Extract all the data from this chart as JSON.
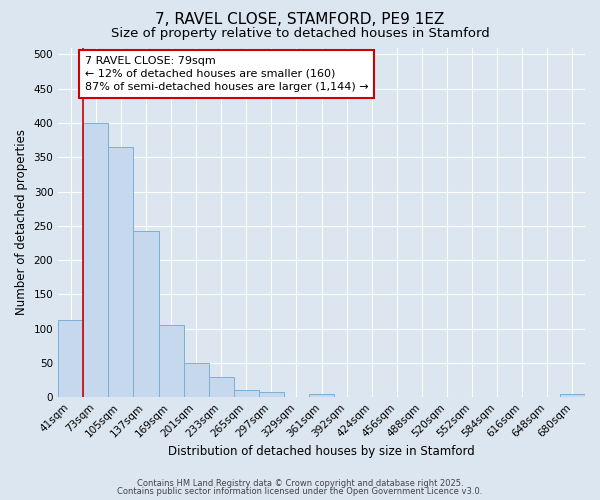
{
  "title": "7, RAVEL CLOSE, STAMFORD, PE9 1EZ",
  "subtitle": "Size of property relative to detached houses in Stamford",
  "xlabel": "Distribution of detached houses by size in Stamford",
  "ylabel": "Number of detached properties",
  "bar_labels": [
    "41sqm",
    "73sqm",
    "105sqm",
    "137sqm",
    "169sqm",
    "201sqm",
    "233sqm",
    "265sqm",
    "297sqm",
    "329sqm",
    "361sqm",
    "392sqm",
    "424sqm",
    "456sqm",
    "488sqm",
    "520sqm",
    "552sqm",
    "584sqm",
    "616sqm",
    "648sqm",
    "680sqm"
  ],
  "bar_heights": [
    113,
    400,
    365,
    243,
    105,
    50,
    30,
    10,
    8,
    0,
    5,
    0,
    0,
    0,
    0,
    0,
    0,
    0,
    0,
    0,
    5
  ],
  "bar_color": "#c5d8ed",
  "bar_edge_color": "#7aafd4",
  "vline_color": "#cc0000",
  "annotation_line1": "7 RAVEL CLOSE: 79sqm",
  "annotation_line2": "← 12% of detached houses are smaller (160)",
  "annotation_line3": "87% of semi-detached houses are larger (1,144) →",
  "annotation_box_color": "#ffffff",
  "annotation_box_edge": "#cc0000",
  "ylim": [
    0,
    510
  ],
  "yticks": [
    0,
    50,
    100,
    150,
    200,
    250,
    300,
    350,
    400,
    450,
    500
  ],
  "fig_bg_color": "#dce6f0",
  "plot_bg_color": "#dce6f0",
  "footer1": "Contains HM Land Registry data © Crown copyright and database right 2025.",
  "footer2": "Contains public sector information licensed under the Open Government Licence v3.0.",
  "title_fontsize": 11,
  "subtitle_fontsize": 9.5,
  "axis_label_fontsize": 8.5,
  "tick_fontsize": 7.5,
  "annotation_fontsize": 8,
  "footer_fontsize": 6
}
